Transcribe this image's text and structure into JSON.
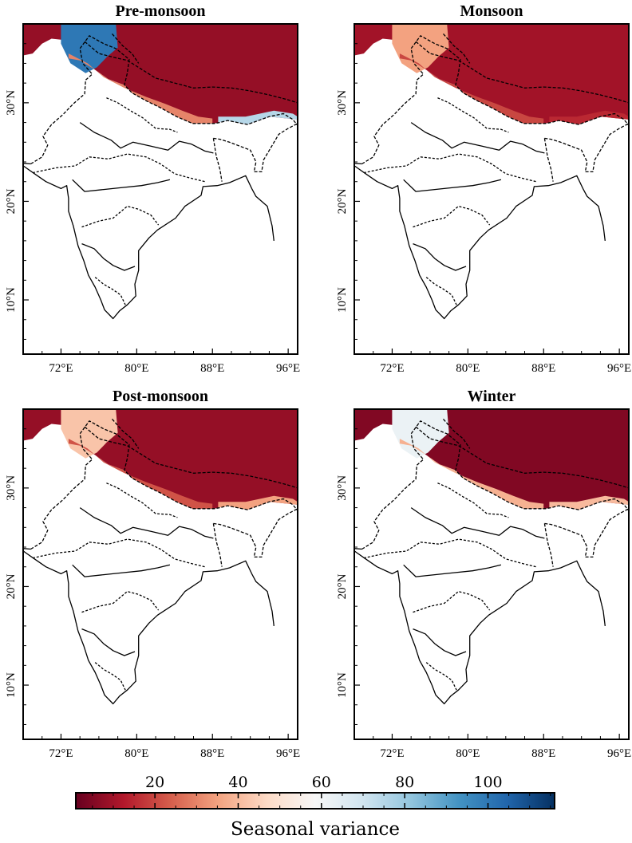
{
  "chart_data": [
    {
      "type": "heatmap",
      "title": "Pre-monsoon",
      "xticks": [
        "72°E",
        "80°E",
        "88°E",
        "96°E"
      ],
      "yticks": [
        "10°N",
        "20°N",
        "30°N"
      ],
      "xlim": [
        68,
        97
      ],
      "ylim": [
        4.5,
        38
      ],
      "regions": [
        {
          "name": "himalaya-north",
          "value": 8
        },
        {
          "name": "karakoram-kashmir",
          "value": 100
        },
        {
          "name": "nepal-border-band",
          "value": 30
        },
        {
          "name": "eastern-himalaya",
          "value": 75
        }
      ]
    },
    {
      "type": "heatmap",
      "title": "Monsoon",
      "xticks": [
        "72°E",
        "80°E",
        "88°E",
        "96°E"
      ],
      "yticks": [
        "10°N",
        "20°N",
        "30°N"
      ],
      "xlim": [
        68,
        97
      ],
      "ylim": [
        4.5,
        38
      ],
      "regions": [
        {
          "name": "himalaya-north",
          "value": 10
        },
        {
          "name": "karakoram-kashmir",
          "value": 35
        },
        {
          "name": "nepal-border-band",
          "value": 20
        },
        {
          "name": "eastern-himalaya",
          "value": 15
        }
      ]
    },
    {
      "type": "heatmap",
      "title": "Post-monsoon",
      "xticks": [
        "72°E",
        "80°E",
        "88°E",
        "96°E"
      ],
      "yticks": [
        "10°N",
        "20°N",
        "30°N"
      ],
      "xlim": [
        68,
        97
      ],
      "ylim": [
        4.5,
        38
      ],
      "regions": [
        {
          "name": "himalaya-north",
          "value": 8
        },
        {
          "name": "karakoram-kashmir",
          "value": 42
        },
        {
          "name": "nepal-border-band",
          "value": 22
        },
        {
          "name": "eastern-himalaya",
          "value": 35
        }
      ]
    },
    {
      "type": "heatmap",
      "title": "Winter",
      "xticks": [
        "72°E",
        "80°E",
        "88°E",
        "96°E"
      ],
      "yticks": [
        "10°N",
        "20°N",
        "30°N"
      ],
      "xlim": [
        68,
        97
      ],
      "ylim": [
        4.5,
        38
      ],
      "regions": [
        {
          "name": "himalaya-north",
          "value": 5
        },
        {
          "name": "karakoram-kashmir",
          "value": 62
        },
        {
          "name": "nepal-border-band",
          "value": 38
        },
        {
          "name": "eastern-himalaya",
          "value": 40
        }
      ]
    }
  ],
  "colorbar": {
    "label": "Seasonal variance",
    "ticks": [
      20,
      40,
      60,
      80,
      100
    ],
    "range": [
      1,
      116
    ],
    "colormap": [
      "#67001f",
      "#b2182b",
      "#d6604d",
      "#f4a582",
      "#fddbc7",
      "#f7f7f7",
      "#d1e5f0",
      "#92c5de",
      "#4393c3",
      "#2166ac",
      "#053061"
    ]
  }
}
